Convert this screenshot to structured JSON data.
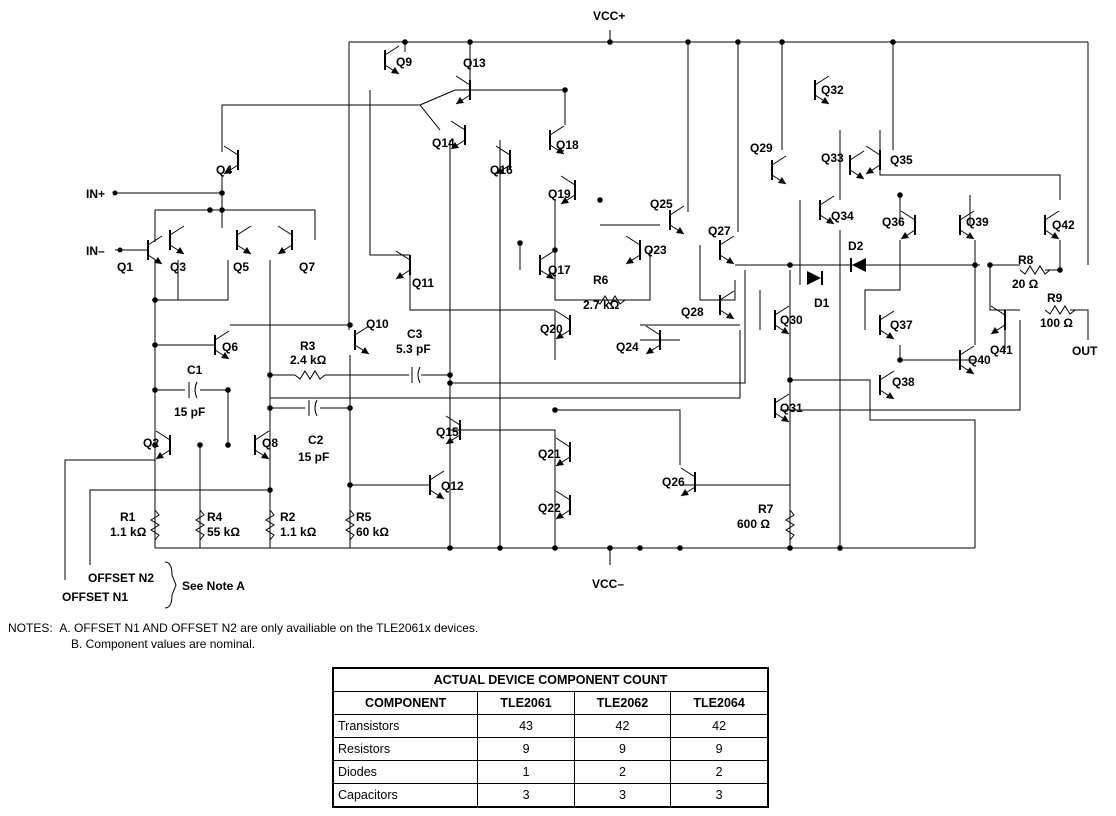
{
  "supply": {
    "vcc_plus": "VCC+",
    "vcc_minus": "VCC–"
  },
  "pins": {
    "in_plus": "IN+",
    "in_minus": "IN–",
    "out": "OUT",
    "offset_n1": "OFFSET N1",
    "offset_n2": "OFFSET N2",
    "see_note": "See Note A"
  },
  "transistors": [
    "Q1",
    "Q2",
    "Q3",
    "Q4",
    "Q5",
    "Q6",
    "Q7",
    "Q8",
    "Q9",
    "Q10",
    "Q11",
    "Q12",
    "Q13",
    "Q14",
    "Q15",
    "Q16",
    "Q17",
    "Q18",
    "Q19",
    "Q20",
    "Q21",
    "Q22",
    "Q23",
    "Q24",
    "Q25",
    "Q26",
    "Q27",
    "Q28",
    "Q29",
    "Q30",
    "Q31",
    "Q32",
    "Q33",
    "Q34",
    "Q35",
    "Q36",
    "Q37",
    "Q38",
    "Q39",
    "Q40",
    "Q41",
    "Q42"
  ],
  "resistors": [
    {
      "label": "R1",
      "value": "1.1 kΩ"
    },
    {
      "label": "R2",
      "value": "1.1 kΩ"
    },
    {
      "label": "R3",
      "value": "2.4 kΩ"
    },
    {
      "label": "R4",
      "value": "55 kΩ"
    },
    {
      "label": "R5",
      "value": "60 kΩ"
    },
    {
      "label": "R6",
      "value": "2.7 kΩ"
    },
    {
      "label": "R7",
      "value": "600 Ω"
    },
    {
      "label": "R8",
      "value": "20 Ω"
    },
    {
      "label": "R9",
      "value": "100 Ω"
    }
  ],
  "capacitors": [
    {
      "label": "C1",
      "value": "15 pF"
    },
    {
      "label": "C2",
      "value": "15 pF"
    },
    {
      "label": "C3",
      "value": "5.3 pF"
    }
  ],
  "diodes": [
    "D1",
    "D2"
  ],
  "notes": {
    "prefix": "NOTES:",
    "a": "A.   OFFSET N1 AND OFFSET N2 are only availiable on the TLE2061x devices.",
    "b": "B.   Component values are nominal."
  },
  "table": {
    "title": "ACTUAL DEVICE COMPONENT COUNT",
    "headers": [
      "COMPONENT",
      "TLE2061",
      "TLE2062",
      "TLE2064"
    ],
    "rows": [
      [
        "Transistors",
        "43",
        "42",
        "42"
      ],
      [
        "Resistors",
        "9",
        "9",
        "9"
      ],
      [
        "Diodes",
        "1",
        "2",
        "2"
      ],
      [
        "Capacitors",
        "3",
        "3",
        "3"
      ]
    ]
  }
}
